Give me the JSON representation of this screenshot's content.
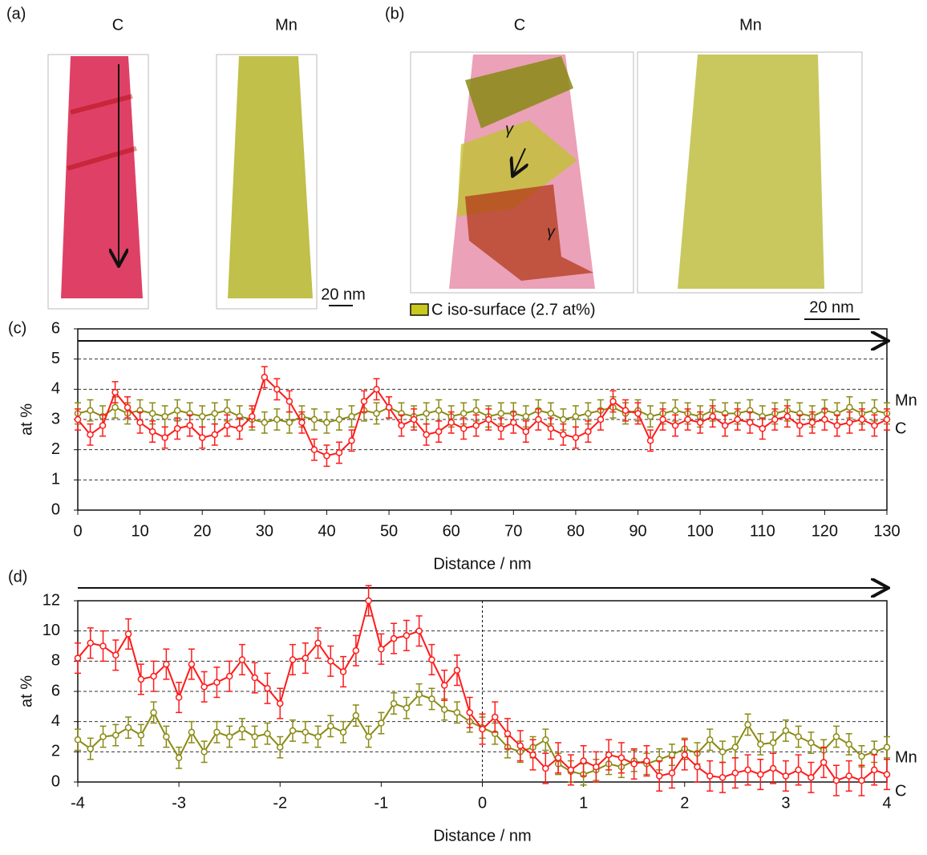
{
  "panels": {
    "a": {
      "label": "(a)",
      "left": "C",
      "right": "Mn",
      "scale": "20 nm"
    },
    "b": {
      "label": "(b)",
      "left": "C",
      "right": "Mn",
      "scale": "20 nm",
      "legend": "C iso-surface (2.7 at%)",
      "phases": [
        "γ",
        "γ"
      ]
    }
  },
  "chart_data": [
    {
      "type": "line",
      "label": "(c)",
      "xlabel": "Distance / nm",
      "ylabel": "at %",
      "x": [
        0,
        2,
        4,
        6,
        8,
        10,
        12,
        14,
        16,
        18,
        20,
        22,
        24,
        26,
        28,
        30,
        32,
        34,
        36,
        38,
        40,
        42,
        44,
        46,
        48,
        50,
        52,
        54,
        56,
        58,
        60,
        62,
        64,
        66,
        68,
        70,
        72,
        74,
        76,
        78,
        80,
        82,
        84,
        86,
        88,
        90,
        92,
        94,
        96,
        98,
        100,
        102,
        104,
        106,
        108,
        110,
        112,
        114,
        116,
        118,
        120,
        122,
        124,
        126,
        128,
        130
      ],
      "series": [
        {
          "name": "Mn",
          "color": "#8a8a14",
          "error": 0.35,
          "values": [
            3.2,
            3.3,
            3.1,
            3.4,
            3.2,
            3.3,
            3.2,
            3.1,
            3.3,
            3.2,
            3.1,
            3.2,
            3.3,
            3.1,
            3.0,
            2.9,
            3.0,
            2.9,
            3.1,
            3.0,
            2.9,
            3.0,
            3.1,
            3.3,
            3.2,
            3.4,
            3.2,
            3.1,
            3.2,
            3.3,
            3.1,
            3.2,
            3.3,
            3.1,
            3.2,
            3.2,
            3.1,
            3.3,
            3.2,
            3.0,
            3.1,
            3.2,
            3.3,
            3.4,
            3.2,
            3.3,
            3.1,
            3.2,
            3.3,
            3.2,
            3.1,
            3.3,
            3.2,
            3.2,
            3.3,
            3.1,
            3.2,
            3.3,
            3.2,
            3.1,
            3.3,
            3.2,
            3.4,
            3.2,
            3.3,
            3.2
          ]
        },
        {
          "name": "C",
          "color": "#ff1a1a",
          "error": 0.35,
          "values": [
            3.0,
            2.5,
            2.8,
            3.9,
            3.4,
            2.9,
            2.6,
            2.4,
            2.7,
            2.8,
            2.4,
            2.5,
            2.8,
            2.7,
            3.1,
            4.4,
            4.0,
            3.6,
            2.9,
            2.0,
            1.8,
            1.9,
            2.3,
            3.6,
            4.0,
            3.4,
            2.8,
            3.0,
            2.5,
            2.6,
            2.9,
            2.7,
            2.8,
            3.0,
            2.7,
            2.9,
            2.6,
            3.0,
            2.7,
            2.5,
            2.4,
            2.6,
            3.0,
            3.6,
            3.3,
            3.2,
            2.3,
            3.0,
            2.8,
            3.0,
            2.9,
            3.1,
            2.8,
            3.0,
            2.9,
            2.7,
            3.0,
            3.1,
            2.8,
            2.9,
            3.0,
            2.8,
            2.9,
            3.0,
            2.8,
            3.0
          ]
        }
      ],
      "xlim": [
        0,
        130
      ],
      "xticks": [
        0,
        10,
        20,
        30,
        40,
        50,
        60,
        70,
        80,
        90,
        100,
        110,
        120,
        130
      ],
      "ylim": [
        0,
        6
      ],
      "yticks": [
        0,
        1,
        2,
        3,
        4,
        5,
        6
      ],
      "grid": true
    },
    {
      "type": "line",
      "label": "(d)",
      "xlabel": "Distance / nm",
      "ylabel": "at %",
      "vline": 0,
      "x": [
        -4,
        -3.875,
        -3.75,
        -3.625,
        -3.5,
        -3.375,
        -3.25,
        -3.125,
        -3,
        -2.875,
        -2.75,
        -2.625,
        -2.5,
        -2.375,
        -2.25,
        -2.125,
        -2,
        -1.875,
        -1.75,
        -1.625,
        -1.5,
        -1.375,
        -1.25,
        -1.125,
        -1,
        -0.875,
        -0.75,
        -0.625,
        -0.5,
        -0.375,
        -0.25,
        -0.125,
        0,
        0.125,
        0.25,
        0.375,
        0.5,
        0.625,
        0.75,
        0.875,
        1,
        1.125,
        1.25,
        1.375,
        1.5,
        1.625,
        1.75,
        1.875,
        2,
        2.125,
        2.25,
        2.375,
        2.5,
        2.625,
        2.75,
        2.875,
        3,
        3.125,
        3.25,
        3.375,
        3.5,
        3.625,
        3.75,
        3.875,
        4
      ],
      "series": [
        {
          "name": "Mn",
          "color": "#8a8a14",
          "error": 0.7,
          "values": [
            2.8,
            2.2,
            3.0,
            3.1,
            3.6,
            3.1,
            4.6,
            3.0,
            1.6,
            3.3,
            2.0,
            3.3,
            3.0,
            3.5,
            3.0,
            3.2,
            2.3,
            3.4,
            3.3,
            3.0,
            3.7,
            3.3,
            4.4,
            3.0,
            3.9,
            5.2,
            4.9,
            5.8,
            5.5,
            4.8,
            4.6,
            4.0,
            3.6,
            3.2,
            2.3,
            2.0,
            2.3,
            2.8,
            1.2,
            0.7,
            0.5,
            0.8,
            1.2,
            1.0,
            1.4,
            1.2,
            1.5,
            1.8,
            2.2,
            1.9,
            2.8,
            2.0,
            2.3,
            3.8,
            2.5,
            2.6,
            3.4,
            3.0,
            2.6,
            2.1,
            3.0,
            2.5,
            1.7,
            2.0,
            2.3
          ]
        },
        {
          "name": "C",
          "color": "#ff1a1a",
          "error": 1.0,
          "values": [
            8.2,
            9.2,
            9.0,
            8.4,
            9.8,
            6.8,
            7.0,
            7.8,
            5.6,
            7.8,
            6.3,
            6.6,
            7.0,
            8.1,
            6.9,
            6.2,
            5.2,
            8.1,
            8.2,
            9.2,
            8.0,
            7.3,
            8.7,
            12.0,
            8.8,
            9.5,
            9.7,
            10.0,
            8.1,
            6.4,
            7.4,
            4.6,
            3.5,
            4.3,
            3.2,
            2.4,
            1.8,
            0.9,
            1.6,
            0.8,
            1.4,
            1.0,
            1.8,
            1.6,
            1.2,
            1.4,
            0.4,
            0.6,
            1.8,
            1.0,
            0.4,
            0.3,
            0.6,
            0.8,
            0.5,
            0.9,
            0.4,
            0.8,
            0.3,
            1.3,
            0.1,
            0.4,
            0.1,
            0.8,
            0.5
          ]
        }
      ],
      "xlim": [
        -4,
        4
      ],
      "xticks": [
        -4,
        -3,
        -2,
        -1,
        0,
        1,
        2,
        3,
        4
      ],
      "ylim": [
        0,
        12
      ],
      "yticks": [
        0,
        2,
        4,
        6,
        8,
        10,
        12
      ],
      "grid": true
    }
  ]
}
